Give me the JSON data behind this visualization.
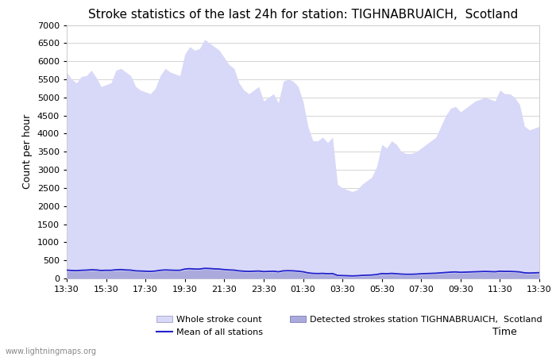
{
  "title": "Stroke statistics of the last 24h for station: TIGHNABRUAICH,  Scotland",
  "xlabel": "Time",
  "ylabel": "Count per hour",
  "watermark": "www.lightningmaps.org",
  "ylim": [
    0,
    7000
  ],
  "yticks": [
    0,
    500,
    1000,
    1500,
    2000,
    2500,
    3000,
    3500,
    4000,
    4500,
    5000,
    5500,
    6000,
    6500,
    7000
  ],
  "x_labels": [
    "13:30",
    "15:30",
    "17:30",
    "19:30",
    "21:30",
    "23:30",
    "01:30",
    "03:30",
    "05:30",
    "07:30",
    "09:30",
    "11:30",
    "13:30"
  ],
  "bg_color": "#ffffff",
  "fill_color": "#d8d8f8",
  "detected_fill_color": "#aaaadd",
  "line_color": "#2222cc",
  "grid_color": "#cccccc",
  "title_fontsize": 11,
  "legend_entries": [
    "Whole stroke count",
    "Mean of all stations",
    "Detected strokes station TIGHNABRUAICH,  Scotland"
  ],
  "whole_stroke_x": [
    0,
    1,
    2,
    3,
    4,
    5,
    6,
    7,
    8,
    9,
    10,
    11,
    12,
    13,
    14,
    15,
    16,
    17,
    18,
    19,
    20,
    21,
    22,
    23,
    24,
    25,
    26,
    27,
    28,
    29,
    30,
    31,
    32,
    33,
    34,
    35,
    36,
    37,
    38,
    39,
    40,
    41,
    42,
    43,
    44,
    45,
    46,
    47,
    48,
    49,
    50,
    51,
    52,
    53,
    54,
    55,
    56,
    57,
    58,
    59,
    60,
    61,
    62,
    63,
    64,
    65,
    66,
    67,
    68,
    69,
    70,
    71,
    72,
    73,
    74,
    75,
    76,
    77,
    78,
    79,
    80,
    81,
    82,
    83,
    84,
    85,
    86,
    87,
    88,
    89,
    90,
    91,
    92,
    93,
    94,
    95,
    96
  ],
  "whole_stroke_y": [
    5700,
    5500,
    5400,
    5580,
    5600,
    5750,
    5550,
    5300,
    5350,
    5400,
    5750,
    5800,
    5700,
    5600,
    5300,
    5200,
    5150,
    5100,
    5250,
    5600,
    5800,
    5700,
    5650,
    5600,
    6200,
    6400,
    6300,
    6350,
    6600,
    6500,
    6400,
    6300,
    6100,
    5900,
    5800,
    5400,
    5200,
    5100,
    5200,
    5300,
    4900,
    5000,
    5100,
    4850,
    5450,
    5500,
    5450,
    5300,
    4900,
    4200,
    3800,
    3800,
    3900,
    3750,
    3900,
    2600,
    2500,
    2450,
    2400,
    2450,
    2600,
    2700,
    2800,
    3100,
    3700,
    3600,
    3800,
    3700,
    3500,
    3450,
    3450,
    3500,
    3600,
    3700,
    3800,
    3900,
    4200,
    4500,
    4700,
    4750,
    4600,
    4700,
    4800,
    4900,
    4950,
    5000,
    4950,
    4900,
    5200,
    5100,
    5100,
    5000,
    4800,
    4200,
    4100,
    4150,
    4200
  ],
  "mean_y": [
    230,
    220,
    215,
    225,
    230,
    240,
    235,
    220,
    225,
    225,
    240,
    245,
    235,
    230,
    210,
    205,
    200,
    195,
    205,
    225,
    235,
    230,
    225,
    225,
    260,
    270,
    260,
    260,
    280,
    275,
    265,
    260,
    245,
    235,
    230,
    210,
    200,
    195,
    200,
    205,
    190,
    195,
    200,
    185,
    210,
    215,
    210,
    200,
    185,
    155,
    140,
    135,
    140,
    130,
    135,
    85,
    80,
    75,
    70,
    75,
    85,
    90,
    95,
    110,
    135,
    130,
    140,
    130,
    120,
    115,
    115,
    120,
    130,
    135,
    140,
    145,
    155,
    165,
    175,
    180,
    170,
    175,
    180,
    185,
    190,
    195,
    190,
    185,
    200,
    195,
    195,
    190,
    180,
    155,
    150,
    155,
    160
  ],
  "detected_y": [
    200,
    195,
    190,
    200,
    205,
    215,
    210,
    195,
    200,
    200,
    215,
    220,
    210,
    205,
    185,
    180,
    175,
    170,
    180,
    200,
    210,
    205,
    200,
    200,
    230,
    245,
    235,
    235,
    255,
    250,
    240,
    235,
    220,
    210,
    205,
    185,
    175,
    170,
    175,
    180,
    165,
    170,
    175,
    160,
    185,
    190,
    185,
    175,
    160,
    130,
    115,
    110,
    115,
    105,
    110,
    60,
    55,
    50,
    45,
    50,
    60,
    65,
    70,
    85,
    110,
    105,
    115,
    105,
    95,
    90,
    90,
    95,
    105,
    110,
    115,
    120,
    130,
    140,
    150,
    155,
    145,
    150,
    155,
    160,
    165,
    170,
    165,
    160,
    175,
    170,
    170,
    165,
    155,
    130,
    125,
    130,
    135
  ]
}
